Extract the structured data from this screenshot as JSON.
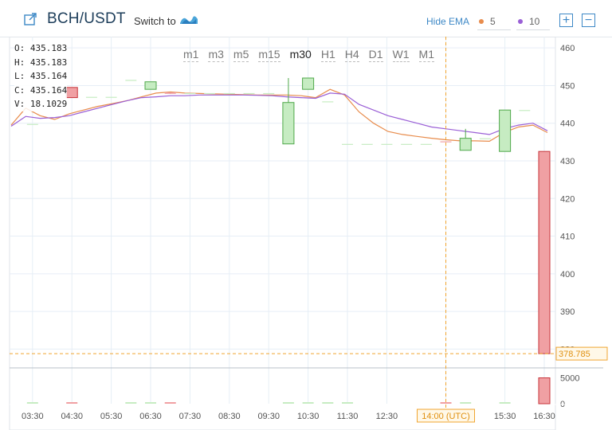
{
  "header": {
    "pair": "BCH/USDT",
    "switch_label": "Switch to",
    "hide_ema": "Hide EMA",
    "ema_fast": "5",
    "ema_slow": "10",
    "zoom_in": "+",
    "zoom_out": "−"
  },
  "colors": {
    "up": "#c6ecc2",
    "up_border": "#4fa84a",
    "down": "#f0a0a3",
    "down_border": "#c7343b",
    "ema5": "#e88c4c",
    "ema10": "#9a5fd6",
    "crosshair": "#f0a530",
    "accent": "#3d88c6"
  },
  "ohlc": {
    "o": "435.183",
    "h": "435.183",
    "l": "435.164",
    "c": "435.164",
    "v": "18.1029"
  },
  "ohlc_labels": {
    "o": "O:",
    "h": "H:",
    "l": "L:",
    "c": "C:",
    "v": "V:"
  },
  "timeframes": [
    {
      "label": "m1",
      "active": false
    },
    {
      "label": "m3",
      "active": false
    },
    {
      "label": "m5",
      "active": false
    },
    {
      "label": "m15",
      "active": false
    },
    {
      "label": "m30",
      "active": true
    },
    {
      "label": "H1",
      "active": false
    },
    {
      "label": "H4",
      "active": false
    },
    {
      "label": "D1",
      "active": false
    },
    {
      "label": "W1",
      "active": false
    },
    {
      "label": "M1",
      "active": false
    }
  ],
  "chart_data": {
    "type": "candlestick",
    "title": "BCH/USDT",
    "interval": "30m",
    "ylim": [
      375,
      463
    ],
    "y_ticks": [
      380,
      390,
      400,
      410,
      420,
      430,
      440,
      450,
      460
    ],
    "x_ticks": [
      "03:30",
      "04:30",
      "05:30",
      "06:30",
      "07:30",
      "08:30",
      "09:30",
      "10:30",
      "11:30",
      "12:30",
      "14:00 (UTC)",
      "15:30",
      "16:30"
    ],
    "x_tick_times": [
      "03:30",
      "04:30",
      "05:30",
      "06:30",
      "07:30",
      "08:30",
      "09:30",
      "10:30",
      "11:30",
      "12:30",
      "14:00",
      "15:30",
      "16:30"
    ],
    "highlighted_x": "14:00 (UTC)",
    "crosshair_price": "378.785",
    "crosshair_time": "14:00",
    "candles": [
      {
        "t": "03:30",
        "o": 439.8,
        "h": 439.8,
        "l": 439.8,
        "c": 439.8,
        "v": 60
      },
      {
        "t": "04:30",
        "o": 449.5,
        "h": 449.5,
        "l": 446.8,
        "c": 446.8,
        "v": 90
      },
      {
        "t": "05:00",
        "o": 447.0,
        "h": 447.0,
        "l": 447.0,
        "c": 447.0,
        "v": 0
      },
      {
        "t": "05:30",
        "o": 447.0,
        "h": 447.0,
        "l": 447.0,
        "c": 447.0,
        "v": 0
      },
      {
        "t": "06:00",
        "o": 451.5,
        "h": 451.5,
        "l": 451.5,
        "c": 451.5,
        "v": 20
      },
      {
        "t": "06:30",
        "o": 449.0,
        "h": 451.0,
        "l": 449.0,
        "c": 451.0,
        "v": 50
      },
      {
        "t": "07:00",
        "o": 448.2,
        "h": 448.2,
        "l": 447.8,
        "c": 447.8,
        "v": 60
      },
      {
        "t": "07:30",
        "o": 448.0,
        "h": 448.0,
        "l": 448.0,
        "c": 448.0,
        "v": 0
      },
      {
        "t": "08:00",
        "o": 448.0,
        "h": 448.0,
        "l": 448.0,
        "c": 448.0,
        "v": 0
      },
      {
        "t": "08:30",
        "o": 448.0,
        "h": 448.0,
        "l": 448.0,
        "c": 448.0,
        "v": 0
      },
      {
        "t": "09:00",
        "o": 448.0,
        "h": 448.0,
        "l": 448.0,
        "c": 448.0,
        "v": 0
      },
      {
        "t": "09:30",
        "o": 448.0,
        "h": 448.0,
        "l": 448.0,
        "c": 448.0,
        "v": 0
      },
      {
        "t": "10:00",
        "o": 434.5,
        "h": 452.0,
        "l": 434.5,
        "c": 445.5,
        "v": 110
      },
      {
        "t": "10:30",
        "o": 449.0,
        "h": 452.0,
        "l": 449.0,
        "c": 452.0,
        "v": 140
      },
      {
        "t": "11:00",
        "o": 445.8,
        "h": 445.8,
        "l": 445.8,
        "c": 445.8,
        "v": 30
      },
      {
        "t": "11:30",
        "o": 434.5,
        "h": 434.5,
        "l": 434.5,
        "c": 434.5,
        "v": 40
      },
      {
        "t": "12:00",
        "o": 434.5,
        "h": 434.5,
        "l": 434.5,
        "c": 434.5,
        "v": 0
      },
      {
        "t": "12:30",
        "o": 434.5,
        "h": 434.5,
        "l": 434.5,
        "c": 434.5,
        "v": 0
      },
      {
        "t": "13:00",
        "o": 434.5,
        "h": 434.5,
        "l": 434.5,
        "c": 434.5,
        "v": 0
      },
      {
        "t": "13:30",
        "o": 434.5,
        "h": 434.5,
        "l": 434.5,
        "c": 434.5,
        "v": 0
      },
      {
        "t": "14:00",
        "o": 435.183,
        "h": 435.183,
        "l": 435.164,
        "c": 435.164,
        "v": 18.1029
      },
      {
        "t": "14:30",
        "o": 432.8,
        "h": 438.5,
        "l": 432.8,
        "c": 436.0,
        "v": 40
      },
      {
        "t": "15:00",
        "o": 436.0,
        "h": 436.0,
        "l": 436.0,
        "c": 436.0,
        "v": 0
      },
      {
        "t": "15:30",
        "o": 432.5,
        "h": 443.5,
        "l": 432.5,
        "c": 443.5,
        "v": 50
      },
      {
        "t": "16:00",
        "o": 443.5,
        "h": 443.5,
        "l": 443.5,
        "c": 443.5,
        "v": 0
      },
      {
        "t": "16:30",
        "o": 432.5,
        "h": 432.5,
        "l": 378.785,
        "c": 378.785,
        "v": 5000
      }
    ],
    "ema5": [
      [
        0,
        439.5
      ],
      [
        1,
        444
      ],
      [
        2,
        442
      ],
      [
        3,
        441
      ],
      [
        4,
        442.5
      ],
      [
        5,
        443.5
      ],
      [
        6,
        444.5
      ],
      [
        7,
        445.2
      ],
      [
        8,
        446
      ],
      [
        9,
        447
      ],
      [
        10,
        448
      ],
      [
        11,
        448.3
      ],
      [
        12,
        448
      ],
      [
        13,
        447.9
      ],
      [
        14,
        447.8
      ],
      [
        15,
        447.7
      ],
      [
        16,
        447.6
      ],
      [
        17,
        447.5
      ],
      [
        18,
        447.5
      ],
      [
        19,
        447.5
      ],
      [
        20,
        447.3
      ],
      [
        21,
        446.8
      ],
      [
        22,
        449
      ],
      [
        23,
        447.5
      ],
      [
        24,
        443
      ],
      [
        25,
        440
      ],
      [
        26,
        437.8
      ],
      [
        27,
        437
      ],
      [
        28,
        436.5
      ],
      [
        29,
        436
      ],
      [
        30,
        435.6
      ],
      [
        31,
        435.3
      ],
      [
        32,
        435.3
      ],
      [
        33,
        435.2
      ],
      [
        34,
        437.5
      ],
      [
        35,
        439
      ],
      [
        36,
        439.5
      ],
      [
        37,
        437.5
      ]
    ],
    "ema10": [
      [
        0,
        439.2
      ],
      [
        1,
        441.8
      ],
      [
        2,
        441.3
      ],
      [
        3,
        441.5
      ],
      [
        4,
        442
      ],
      [
        5,
        443
      ],
      [
        6,
        444
      ],
      [
        7,
        445
      ],
      [
        8,
        446
      ],
      [
        9,
        446.8
      ],
      [
        10,
        447
      ],
      [
        11,
        447.3
      ],
      [
        12,
        447.3
      ],
      [
        13,
        447.5
      ],
      [
        14,
        447.5
      ],
      [
        15,
        447.5
      ],
      [
        16,
        447.5
      ],
      [
        17,
        447.4
      ],
      [
        18,
        447.3
      ],
      [
        19,
        447.0
      ],
      [
        20,
        446.8
      ],
      [
        21,
        446.6
      ],
      [
        22,
        448
      ],
      [
        23,
        447.7
      ],
      [
        24,
        445
      ],
      [
        25,
        443.5
      ],
      [
        26,
        442
      ],
      [
        27,
        441
      ],
      [
        28,
        440
      ],
      [
        29,
        439
      ],
      [
        30,
        438.5
      ],
      [
        31,
        438
      ],
      [
        32,
        437.5
      ],
      [
        33,
        437
      ],
      [
        34,
        438.5
      ],
      [
        35,
        439.5
      ],
      [
        36,
        440
      ],
      [
        37,
        438
      ]
    ],
    "volume_ylim": [
      0,
      6000
    ],
    "volume_ticks": [
      0,
      5000
    ],
    "grid": true
  }
}
